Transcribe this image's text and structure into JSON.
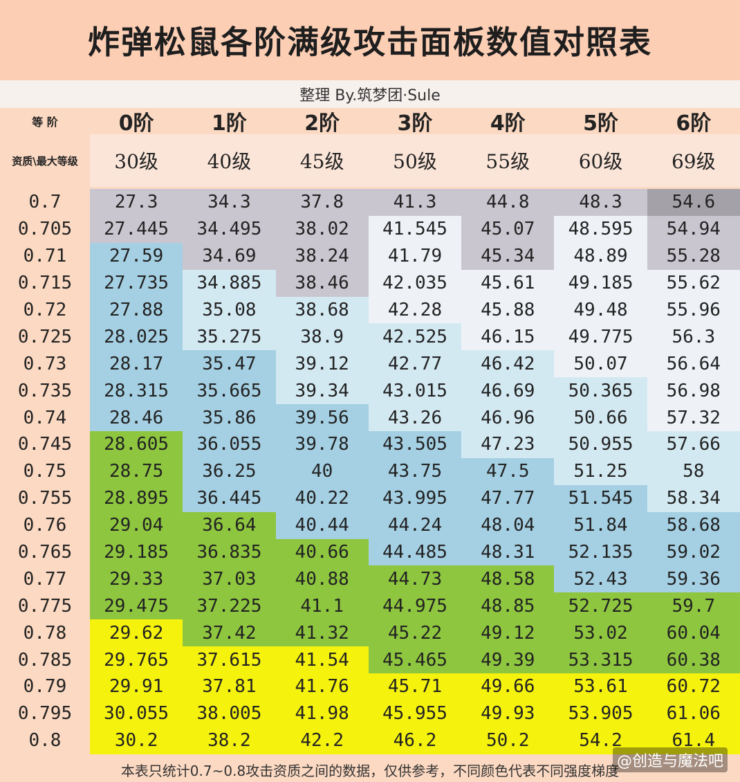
{
  "title": "炸弹松鼠各阶满级攻击面板数值对照表",
  "subtitle": "整理 By.筑梦团·Sule",
  "header": {
    "stage_label": "等 阶",
    "level_label": "资质\\最大等级",
    "stages": [
      "0阶",
      "1阶",
      "2阶",
      "3阶",
      "4阶",
      "5阶",
      "6阶"
    ],
    "levels": [
      "30级",
      "40级",
      "45级",
      "50级",
      "55级",
      "60级",
      "69级"
    ]
  },
  "colors": {
    "gray": "#c9c6cf",
    "darkgray": "#a4a2a8",
    "white": "#eef2f7",
    "lightblue": "#d3e9f2",
    "blue": "#a5d0e3",
    "green": "#8ec63f",
    "yellow": "#f5f20e"
  },
  "rows": [
    {
      "q": "0.7",
      "v": [
        "27.3",
        "34.3",
        "37.8",
        "41.3",
        "44.8",
        "48.3",
        "54.6"
      ],
      "c": [
        "gray",
        "gray",
        "gray",
        "gray",
        "gray",
        "gray",
        "darkgray"
      ]
    },
    {
      "q": "0.705",
      "v": [
        "27.445",
        "34.495",
        "38.02",
        "41.545",
        "45.07",
        "48.595",
        "54.94"
      ],
      "c": [
        "gray",
        "gray",
        "gray",
        "white",
        "gray",
        "white",
        "gray"
      ]
    },
    {
      "q": "0.71",
      "v": [
        "27.59",
        "34.69",
        "38.24",
        "41.79",
        "45.34",
        "48.89",
        "55.28"
      ],
      "c": [
        "blue",
        "gray",
        "gray",
        "white",
        "gray",
        "white",
        "gray"
      ]
    },
    {
      "q": "0.715",
      "v": [
        "27.735",
        "34.885",
        "38.46",
        "42.035",
        "45.61",
        "49.185",
        "55.62"
      ],
      "c": [
        "blue",
        "lightblue",
        "gray",
        "white",
        "white",
        "white",
        "white"
      ]
    },
    {
      "q": "0.72",
      "v": [
        "27.88",
        "35.08",
        "38.68",
        "42.28",
        "45.88",
        "49.48",
        "55.96"
      ],
      "c": [
        "blue",
        "lightblue",
        "lightblue",
        "white",
        "white",
        "white",
        "white"
      ]
    },
    {
      "q": "0.725",
      "v": [
        "28.025",
        "35.275",
        "38.9",
        "42.525",
        "46.15",
        "49.775",
        "56.3"
      ],
      "c": [
        "blue",
        "lightblue",
        "lightblue",
        "lightblue",
        "white",
        "white",
        "white"
      ]
    },
    {
      "q": "0.73",
      "v": [
        "28.17",
        "35.47",
        "39.12",
        "42.77",
        "46.42",
        "50.07",
        "56.64"
      ],
      "c": [
        "blue",
        "blue",
        "lightblue",
        "lightblue",
        "lightblue",
        "white",
        "white"
      ]
    },
    {
      "q": "0.735",
      "v": [
        "28.315",
        "35.665",
        "39.34",
        "43.015",
        "46.69",
        "50.365",
        "56.98"
      ],
      "c": [
        "blue",
        "blue",
        "lightblue",
        "lightblue",
        "lightblue",
        "lightblue",
        "white"
      ]
    },
    {
      "q": "0.74",
      "v": [
        "28.46",
        "35.86",
        "39.56",
        "43.26",
        "46.96",
        "50.66",
        "57.32"
      ],
      "c": [
        "blue",
        "blue",
        "blue",
        "lightblue",
        "lightblue",
        "lightblue",
        "white"
      ]
    },
    {
      "q": "0.745",
      "v": [
        "28.605",
        "36.055",
        "39.78",
        "43.505",
        "47.23",
        "50.955",
        "57.66"
      ],
      "c": [
        "green",
        "blue",
        "blue",
        "blue",
        "lightblue",
        "lightblue",
        "lightblue"
      ]
    },
    {
      "q": "0.75",
      "v": [
        "28.75",
        "36.25",
        "40",
        "43.75",
        "47.5",
        "51.25",
        "58"
      ],
      "c": [
        "green",
        "blue",
        "blue",
        "blue",
        "blue",
        "lightblue",
        "lightblue"
      ]
    },
    {
      "q": "0.755",
      "v": [
        "28.895",
        "36.445",
        "40.22",
        "43.995",
        "47.77",
        "51.545",
        "58.34"
      ],
      "c": [
        "green",
        "blue",
        "blue",
        "blue",
        "blue",
        "blue",
        "lightblue"
      ]
    },
    {
      "q": "0.76",
      "v": [
        "29.04",
        "36.64",
        "40.44",
        "44.24",
        "48.04",
        "51.84",
        "58.68"
      ],
      "c": [
        "green",
        "green",
        "blue",
        "blue",
        "blue",
        "blue",
        "blue"
      ]
    },
    {
      "q": "0.765",
      "v": [
        "29.185",
        "36.835",
        "40.66",
        "44.485",
        "48.31",
        "52.135",
        "59.02"
      ],
      "c": [
        "green",
        "green",
        "green",
        "blue",
        "blue",
        "blue",
        "blue"
      ]
    },
    {
      "q": "0.77",
      "v": [
        "29.33",
        "37.03",
        "40.88",
        "44.73",
        "48.58",
        "52.43",
        "59.36"
      ],
      "c": [
        "green",
        "green",
        "green",
        "green",
        "green",
        "blue",
        "blue"
      ]
    },
    {
      "q": "0.775",
      "v": [
        "29.475",
        "37.225",
        "41.1",
        "44.975",
        "48.85",
        "52.725",
        "59.7"
      ],
      "c": [
        "green",
        "green",
        "green",
        "green",
        "green",
        "green",
        "green"
      ]
    },
    {
      "q": "0.78",
      "v": [
        "29.62",
        "37.42",
        "41.32",
        "45.22",
        "49.12",
        "53.02",
        "60.04"
      ],
      "c": [
        "yellow",
        "green",
        "green",
        "green",
        "green",
        "green",
        "green"
      ]
    },
    {
      "q": "0.785",
      "v": [
        "29.765",
        "37.615",
        "41.54",
        "45.465",
        "49.39",
        "53.315",
        "60.38"
      ],
      "c": [
        "yellow",
        "yellow",
        "yellow",
        "green",
        "green",
        "green",
        "green"
      ]
    },
    {
      "q": "0.79",
      "v": [
        "29.91",
        "37.81",
        "41.76",
        "45.71",
        "49.66",
        "53.61",
        "60.72"
      ],
      "c": [
        "yellow",
        "yellow",
        "yellow",
        "yellow",
        "yellow",
        "yellow",
        "yellow"
      ]
    },
    {
      "q": "0.795",
      "v": [
        "30.055",
        "38.005",
        "41.98",
        "45.955",
        "49.93",
        "53.905",
        "61.06"
      ],
      "c": [
        "yellow",
        "yellow",
        "yellow",
        "yellow",
        "yellow",
        "yellow",
        "yellow"
      ]
    },
    {
      "q": "0.8",
      "v": [
        "30.2",
        "38.2",
        "42.2",
        "46.2",
        "50.2",
        "54.2",
        "61.4"
      ],
      "c": [
        "yellow",
        "yellow",
        "yellow",
        "yellow",
        "yellow",
        "yellow",
        "yellow"
      ]
    }
  ],
  "footer": "本表只统计0.7~0.8攻击资质之间的数据，仅供参考，不同颜色代表不同强度梯度",
  "watermark": "@创造与魔法吧"
}
